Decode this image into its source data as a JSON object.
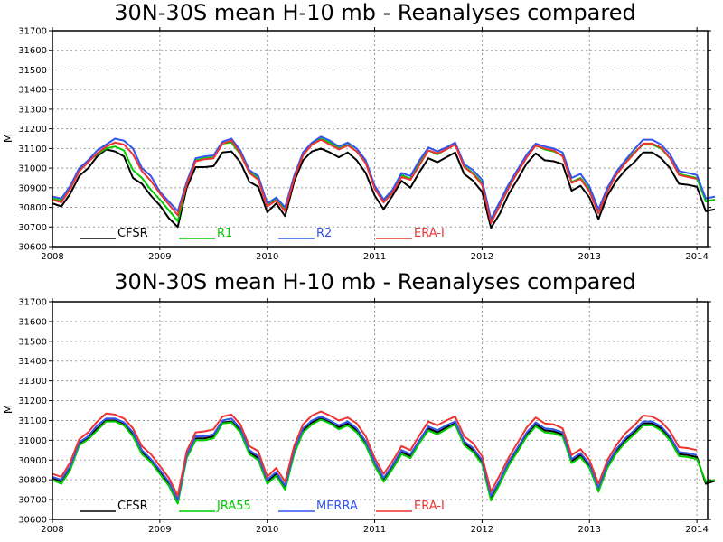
{
  "chart_data": [
    {
      "type": "line",
      "title": "30N-30S mean H-10 mb - Reanalyses compared",
      "ylabel": "M",
      "xlim": [
        2008,
        2014.1
      ],
      "ylim": [
        30600,
        31700
      ],
      "x_ticks": [
        "2008",
        "2009",
        "2010",
        "2011",
        "2012",
        "2013",
        "2014"
      ],
      "y_ticks": [
        "30600",
        "30700",
        "30800",
        "30900",
        "31000",
        "31100",
        "31200",
        "31300",
        "31400",
        "31500",
        "31600",
        "31700"
      ],
      "grid": true,
      "legend": "bottom-left",
      "series": [
        {
          "name": "CFSR",
          "color": "#000000",
          "values": [
            30820,
            30805,
            30870,
            30960,
            31000,
            31060,
            31095,
            31085,
            31060,
            30950,
            30920,
            30860,
            30810,
            30745,
            30700,
            30900,
            31005,
            31005,
            31010,
            31080,
            31085,
            31030,
            30930,
            30905,
            30775,
            30820,
            30755,
            30930,
            31040,
            31085,
            31100,
            31080,
            31055,
            31080,
            31040,
            30975,
            30860,
            30790,
            30860,
            30935,
            30900,
            30980,
            31050,
            31030,
            31055,
            31080,
            30970,
            30935,
            30880,
            30695,
            30770,
            30870,
            30945,
            31025,
            31075,
            31040,
            31035,
            31020,
            30885,
            30910,
            30850,
            30740,
            30860,
            30935,
            30990,
            31030,
            31080,
            31080,
            31050,
            31000,
            30920,
            30915,
            30905,
            30780,
            30790
          ]
        },
        {
          "name": "R1",
          "color": "#00cc00",
          "values": [
            30845,
            30835,
            30905,
            30995,
            31035,
            31070,
            31100,
            31110,
            31090,
            30990,
            30950,
            30890,
            30840,
            30785,
            30730,
            30920,
            31040,
            31050,
            31055,
            31125,
            31130,
            31070,
            30980,
            30950,
            30810,
            30840,
            30790,
            30950,
            31070,
            31120,
            31150,
            31130,
            31100,
            31120,
            31085,
            31030,
            30905,
            30830,
            30885,
            30965,
            30945,
            31025,
            31090,
            31070,
            31095,
            31120,
            31010,
            30975,
            30925,
            30730,
            30820,
            30910,
            30985,
            31060,
            31115,
            31095,
            31085,
            31065,
            30930,
            30950,
            30890,
            30780,
            30890,
            30970,
            31030,
            31080,
            31120,
            31120,
            31100,
            31050,
            30970,
            30960,
            30950,
            30830,
            30840
          ]
        },
        {
          "name": "R2",
          "color": "#3355ee",
          "values": [
            30855,
            30845,
            30910,
            31000,
            31040,
            31090,
            31120,
            31150,
            31140,
            31100,
            31000,
            30960,
            30880,
            30830,
            30780,
            30930,
            31050,
            31060,
            31065,
            31135,
            31150,
            31090,
            30990,
            30960,
            30820,
            30850,
            30800,
            30960,
            31080,
            31130,
            31160,
            31140,
            31110,
            31130,
            31100,
            31040,
            30910,
            30840,
            30890,
            30975,
            30960,
            31040,
            31105,
            31085,
            31105,
            31130,
            31020,
            30990,
            30940,
            30740,
            30830,
            30920,
            30995,
            31070,
            31125,
            31110,
            31100,
            31080,
            30950,
            30970,
            30905,
            30790,
            30900,
            30980,
            31040,
            31095,
            31145,
            31145,
            31120,
            31070,
            30985,
            30975,
            30965,
            30845,
            30855
          ]
        },
        {
          "name": "ERA-I",
          "color": "#ee3333",
          "values": [
            30840,
            30825,
            30895,
            30985,
            31030,
            31075,
            31110,
            31130,
            31120,
            31070,
            30985,
            30935,
            30870,
            30815,
            30760,
            30915,
            31035,
            31045,
            31050,
            31125,
            31140,
            31075,
            30975,
            30940,
            30805,
            30835,
            30780,
            30945,
            31065,
            31120,
            31145,
            31120,
            31095,
            31115,
            31085,
            31025,
            30895,
            30825,
            30875,
            30955,
            30940,
            31015,
            31090,
            31075,
            31095,
            31120,
            31005,
            30970,
            30915,
            30720,
            30810,
            30900,
            30980,
            31055,
            31115,
            31100,
            31090,
            31060,
            30925,
            30945,
            30880,
            30770,
            30880,
            30965,
            31025,
            31075,
            31125,
            31125,
            31105,
            31050,
            30965,
            30955,
            30945
          ]
        }
      ]
    },
    {
      "type": "line",
      "title": "30N-30S mean H-10 mb - Reanalyses compared",
      "ylabel": "M",
      "xlim": [
        2008,
        2014.1
      ],
      "ylim": [
        30600,
        31700
      ],
      "x_ticks": [
        "2008",
        "2009",
        "2010",
        "2011",
        "2012",
        "2013",
        "2014"
      ],
      "y_ticks": [
        "30600",
        "30700",
        "30800",
        "30900",
        "31000",
        "31100",
        "31200",
        "31300",
        "31400",
        "31500",
        "31600",
        "31700"
      ],
      "grid": true,
      "legend": "bottom-left",
      "series": [
        {
          "name": "CFSR",
          "color": "#000000",
          "values": [
            30810,
            30790,
            30860,
            30980,
            31010,
            31060,
            31100,
            31100,
            31080,
            31030,
            30940,
            30900,
            30840,
            30780,
            30690,
            30920,
            31010,
            31010,
            31020,
            31090,
            31095,
            31050,
            30940,
            30910,
            30790,
            30830,
            30760,
            30940,
            31050,
            31090,
            31110,
            31090,
            31065,
            31085,
            31050,
            30985,
            30880,
            30800,
            30865,
            30940,
            30920,
            30990,
            31060,
            31040,
            31065,
            31085,
            30985,
            30950,
            30890,
            30710,
            30790,
            30885,
            30955,
            31030,
            31080,
            31050,
            31045,
            31030,
            30895,
            30925,
            30870,
            30750,
            30870,
            30945,
            31000,
            31040,
            31085,
            31085,
            31060,
            31010,
            30930,
            30925,
            30915,
            30780,
            30795
          ]
        },
        {
          "name": "JRA55",
          "color": "#00cc00",
          "values": [
            30800,
            30780,
            30850,
            30975,
            31005,
            31050,
            31095,
            31095,
            31075,
            31020,
            30930,
            30890,
            30830,
            30770,
            30680,
            30910,
            31000,
            31000,
            31010,
            31085,
            31090,
            31040,
            30930,
            30900,
            30780,
            30820,
            30750,
            30930,
            31040,
            31080,
            31105,
            31085,
            31055,
            31075,
            31040,
            30975,
            30870,
            30790,
            30855,
            30930,
            30910,
            30985,
            31050,
            31030,
            31055,
            31080,
            30975,
            30940,
            30880,
            30695,
            30780,
            30875,
            30945,
            31020,
            31070,
            31040,
            31035,
            31020,
            30885,
            30915,
            30860,
            30740,
            30860,
            30935,
            30990,
            31030,
            31075,
            31075,
            31050,
            31000,
            30920,
            30915,
            30905,
            30790,
            30800
          ]
        },
        {
          "name": "MERRA",
          "color": "#3355ee",
          "values": [
            30815,
            30800,
            30870,
            30990,
            31020,
            31075,
            31110,
            31110,
            31090,
            31040,
            30950,
            30905,
            30850,
            30790,
            30700,
            30925,
            31020,
            31020,
            31030,
            31100,
            31110,
            31060,
            30950,
            30920,
            30800,
            30840,
            30770,
            30950,
            31060,
            31100,
            31120,
            31100,
            31075,
            31095,
            31060,
            30995,
            30890,
            30810,
            30875,
            30950,
            30930,
            31000,
            31070,
            31050,
            31075,
            31095,
            30995,
            30960,
            30900,
            30720,
            30800,
            30895,
            30965,
            31040,
            31090,
            31060,
            31055,
            31040,
            30905,
            30935,
            30880,
            30760,
            30880,
            30955,
            31010,
            31050,
            31095,
            31095,
            31070,
            31020,
            30940,
            30935,
            30925
          ]
        },
        {
          "name": "ERA-I",
          "color": "#ee3333",
          "values": [
            30830,
            30815,
            30890,
            31005,
            31040,
            31095,
            31135,
            31130,
            31110,
            31060,
            30970,
            30930,
            30870,
            30810,
            30720,
            30945,
            31040,
            31045,
            31055,
            31120,
            31130,
            31080,
            30970,
            30945,
            30815,
            30860,
            30790,
            30970,
            31080,
            31125,
            31145,
            31125,
            31100,
            31115,
            31085,
            31020,
            30910,
            30830,
            30895,
            30970,
            30950,
            31025,
            31095,
            31075,
            31100,
            31120,
            31020,
            30985,
            30920,
            30740,
            30825,
            30915,
            30990,
            31065,
            31115,
            31085,
            31080,
            31060,
            30925,
            30955,
            30900,
            30780,
            30900,
            30975,
            31035,
            31075,
            31125,
            31120,
            31095,
            31045,
            30965,
            30960,
            30950
          ]
        }
      ]
    }
  ]
}
